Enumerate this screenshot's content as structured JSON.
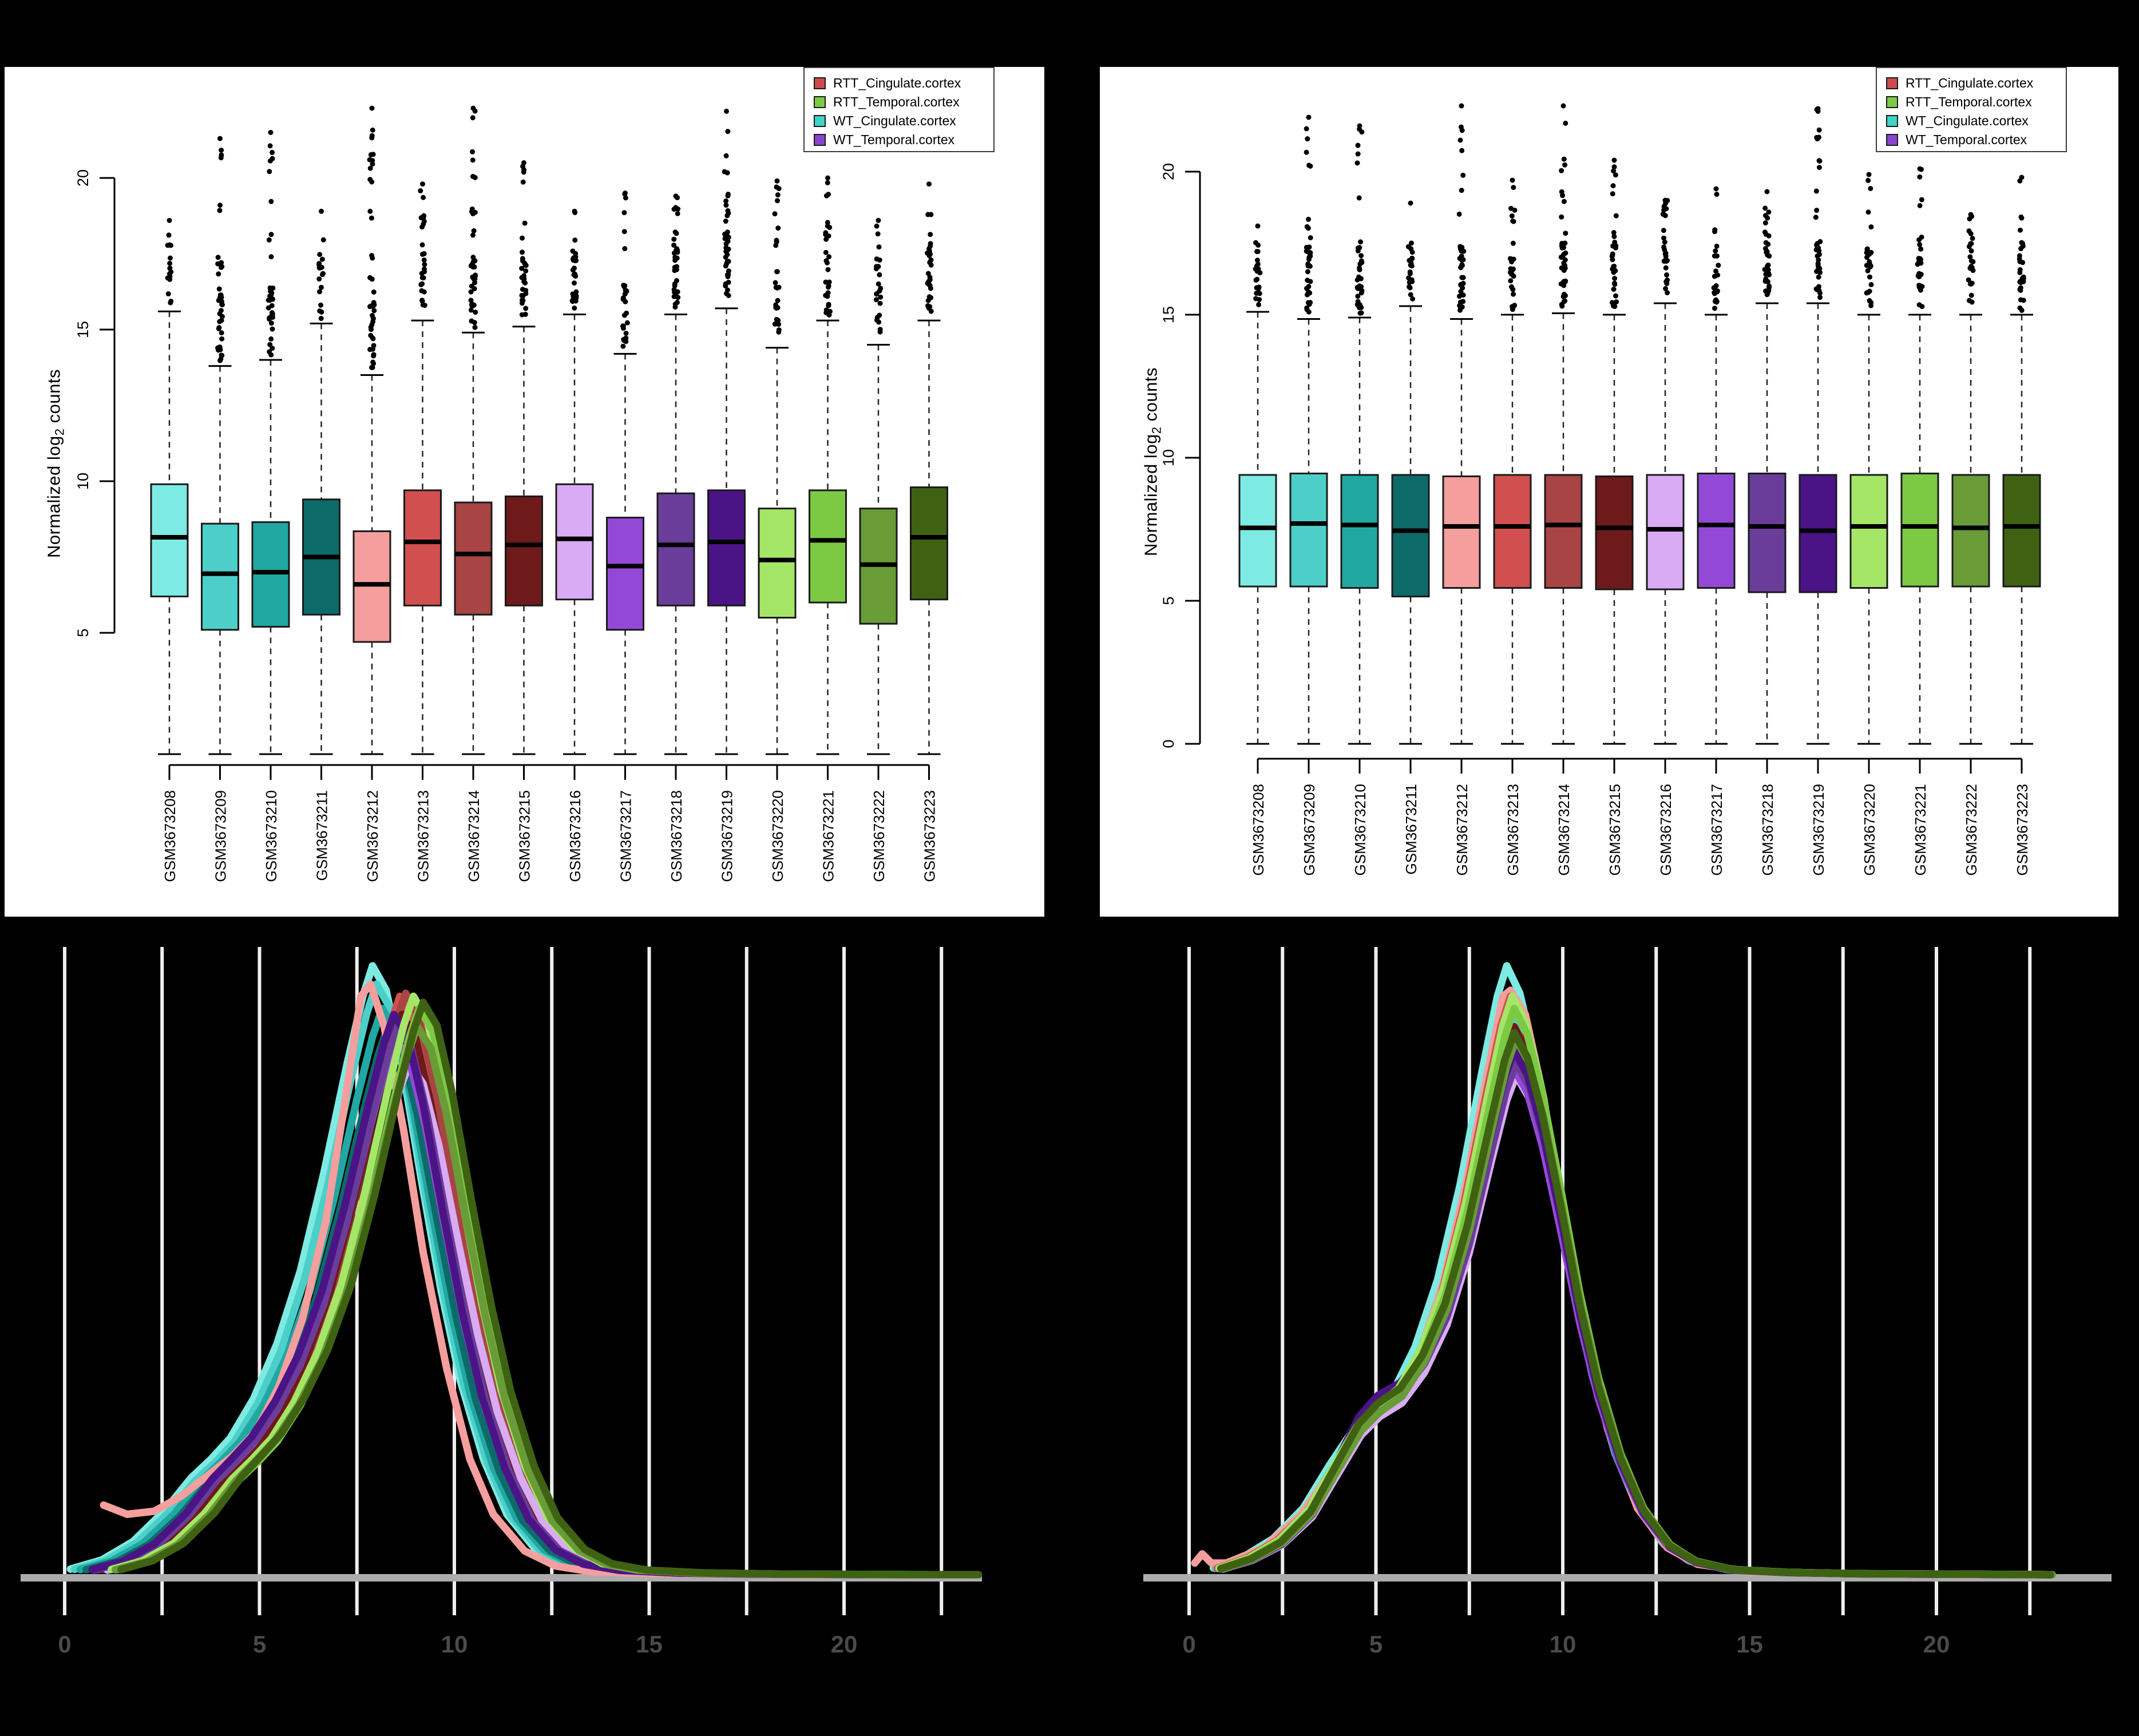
{
  "page": {
    "background": "#000000"
  },
  "chart_data": {
    "type": [
      "boxplot",
      "boxplot",
      "density",
      "density"
    ],
    "y_label": {
      "pre": "Normalized log",
      "sub": "2",
      "post": " counts"
    },
    "legend": {
      "position": "top-right",
      "items": [
        {
          "label": "RTT_Cingulate.cortex",
          "color": "#CD4B4B"
        },
        {
          "label": "RTT_Temporal.cortex",
          "color": "#7CC944"
        },
        {
          "label": "WT_Cingulate.cortex",
          "color": "#3FD2C7"
        },
        {
          "label": "WT_Temporal.cortex",
          "color": "#8B45CC"
        }
      ]
    },
    "samples": [
      {
        "id": "GSM3673208",
        "color": "#7DEBE3",
        "group": "WT_Cingulate.cortex"
      },
      {
        "id": "GSM3673209",
        "color": "#4CCFC8",
        "group": "WT_Cingulate.cortex"
      },
      {
        "id": "GSM3673210",
        "color": "#21A8A2",
        "group": "WT_Cingulate.cortex"
      },
      {
        "id": "GSM3673211",
        "color": "#0C6B68",
        "group": "WT_Cingulate.cortex"
      },
      {
        "id": "GSM3673212",
        "color": "#F59E9E",
        "group": "RTT_Cingulate.cortex"
      },
      {
        "id": "GSM3673213",
        "color": "#D14F4F",
        "group": "RTT_Cingulate.cortex"
      },
      {
        "id": "GSM3673214",
        "color": "#A84444",
        "group": "RTT_Cingulate.cortex"
      },
      {
        "id": "GSM3673215",
        "color": "#6E1A1A",
        "group": "RTT_Cingulate.cortex"
      },
      {
        "id": "GSM3673216",
        "color": "#D9ABF5",
        "group": "WT_Temporal.cortex"
      },
      {
        "id": "GSM3673217",
        "color": "#9449D6",
        "group": "WT_Temporal.cortex"
      },
      {
        "id": "GSM3673218",
        "color": "#6A3D9A",
        "group": "WT_Temporal.cortex"
      },
      {
        "id": "GSM3673219",
        "color": "#4B1486",
        "group": "WT_Temporal.cortex"
      },
      {
        "id": "GSM3673220",
        "color": "#A5E667",
        "group": "RTT_Temporal.cortex"
      },
      {
        "id": "GSM3673221",
        "color": "#7CC944",
        "group": "RTT_Temporal.cortex"
      },
      {
        "id": "GSM3673222",
        "color": "#699B37",
        "group": "RTT_Temporal.cortex"
      },
      {
        "id": "GSM3673223",
        "color": "#3E6212",
        "group": "RTT_Temporal.cortex"
      }
    ],
    "box_left": {
      "y_ticks": [
        5,
        10,
        15,
        20
      ],
      "stats_key": [
        "q1",
        "median",
        "q3",
        "whisker_low",
        "whisker_high",
        "outlier_max",
        "outlier_count"
      ],
      "stats": [
        [
          6.2,
          8.15,
          9.9,
          1.0,
          15.6,
          18.6,
          16
        ],
        [
          5.1,
          6.95,
          8.6,
          1.0,
          13.8,
          21.3,
          38
        ],
        [
          5.2,
          7.0,
          8.65,
          1.0,
          14.0,
          21.5,
          34
        ],
        [
          5.6,
          7.5,
          9.4,
          1.0,
          15.2,
          18.9,
          18
        ],
        [
          4.7,
          6.6,
          8.35,
          1.0,
          13.5,
          22.3,
          42
        ],
        [
          5.9,
          8.0,
          9.7,
          1.0,
          15.3,
          19.8,
          26
        ],
        [
          5.6,
          7.6,
          9.3,
          1.0,
          14.9,
          22.3,
          40
        ],
        [
          5.9,
          7.9,
          9.5,
          1.0,
          15.1,
          20.5,
          30
        ],
        [
          6.1,
          8.1,
          9.9,
          1.0,
          15.5,
          18.9,
          28
        ],
        [
          5.1,
          7.2,
          8.8,
          1.0,
          14.2,
          19.5,
          26
        ],
        [
          5.9,
          7.9,
          9.6,
          1.0,
          15.5,
          19.4,
          34
        ],
        [
          5.9,
          8.0,
          9.7,
          1.0,
          15.7,
          22.2,
          40
        ],
        [
          5.5,
          7.4,
          9.1,
          1.0,
          14.4,
          19.9,
          26
        ],
        [
          6.0,
          8.05,
          9.7,
          1.0,
          15.3,
          20.0,
          30
        ],
        [
          5.3,
          7.25,
          9.1,
          1.0,
          14.5,
          18.6,
          24
        ],
        [
          6.1,
          8.15,
          9.8,
          1.0,
          15.3,
          19.8,
          28
        ]
      ]
    },
    "box_right": {
      "y_ticks": [
        0,
        5,
        10,
        15,
        20
      ],
      "stats_key": [
        "q1",
        "median",
        "q3",
        "whisker_low",
        "whisker_high",
        "outlier_max",
        "outlier_count"
      ],
      "stats": [
        [
          5.5,
          7.55,
          9.4,
          0,
          15.1,
          18.1,
          22
        ],
        [
          5.5,
          7.7,
          9.45,
          0,
          14.85,
          21.9,
          36
        ],
        [
          5.45,
          7.65,
          9.4,
          0,
          14.9,
          21.6,
          34
        ],
        [
          5.15,
          7.45,
          9.4,
          0,
          15.3,
          18.9,
          20
        ],
        [
          5.45,
          7.6,
          9.35,
          0,
          14.85,
          22.3,
          40
        ],
        [
          5.45,
          7.6,
          9.4,
          0,
          15.0,
          19.7,
          26
        ],
        [
          5.45,
          7.65,
          9.4,
          0,
          15.05,
          22.3,
          38
        ],
        [
          5.4,
          7.55,
          9.35,
          0,
          15.0,
          20.4,
          30
        ],
        [
          5.4,
          7.5,
          9.4,
          0,
          15.4,
          19.0,
          26
        ],
        [
          5.45,
          7.65,
          9.45,
          0,
          15.0,
          19.4,
          24
        ],
        [
          5.3,
          7.6,
          9.45,
          0,
          15.4,
          19.3,
          32
        ],
        [
          5.3,
          7.45,
          9.4,
          0,
          15.4,
          22.2,
          38
        ],
        [
          5.45,
          7.6,
          9.4,
          0,
          15.0,
          19.9,
          26
        ],
        [
          5.5,
          7.6,
          9.45,
          0,
          15.0,
          20.1,
          30
        ],
        [
          5.5,
          7.55,
          9.4,
          0,
          15.0,
          18.5,
          24
        ],
        [
          5.5,
          7.6,
          9.4,
          0,
          15.0,
          19.8,
          28
        ]
      ]
    },
    "density_left": {
      "x_ticks": [
        0,
        5,
        10,
        15,
        20
      ],
      "gridline_values": [
        0,
        2.5,
        5,
        7.5,
        10,
        12.5,
        15,
        17.5,
        20,
        22.5
      ],
      "base_curve": [
        [
          1,
          0.01
        ],
        [
          1.8,
          0.025
        ],
        [
          2.6,
          0.055
        ],
        [
          3.4,
          0.105
        ],
        [
          4.1,
          0.16
        ],
        [
          4.6,
          0.19
        ],
        [
          5.1,
          0.225
        ],
        [
          5.7,
          0.29
        ],
        [
          6.3,
          0.38
        ],
        [
          6.9,
          0.5
        ],
        [
          7.5,
          0.66
        ],
        [
          8.1,
          0.84
        ],
        [
          8.5,
          0.95
        ],
        [
          8.75,
          1.0
        ],
        [
          9.1,
          0.96
        ],
        [
          9.5,
          0.84
        ],
        [
          10,
          0.65
        ],
        [
          10.5,
          0.47
        ],
        [
          11,
          0.32
        ],
        [
          11.6,
          0.19
        ],
        [
          12.2,
          0.1
        ],
        [
          12.9,
          0.045
        ],
        [
          13.6,
          0.02
        ],
        [
          14.5,
          0.009
        ],
        [
          16,
          0.004
        ],
        [
          18,
          0.002
        ],
        [
          20,
          0.0015
        ],
        [
          21.5,
          0.001
        ],
        [
          23,
          0.001
        ]
      ],
      "curves": [
        {
          "sample": 0,
          "dx": -0.85,
          "sy": 1.0,
          "shoulder": 1.0
        },
        {
          "sample": 1,
          "dx": -0.75,
          "sy": 0.97,
          "shoulder": 1.0
        },
        {
          "sample": 2,
          "dx": -0.6,
          "sy": 0.93,
          "shoulder": 1.05
        },
        {
          "sample": 3,
          "dx": -0.45,
          "sy": 0.9,
          "shoulder": 1.05
        },
        {
          "sample": 4,
          "dx": 0,
          "sy": 1,
          "shoulder": 1,
          "points": [
            [
              1,
              0.115
            ],
            [
              1.6,
              0.1
            ],
            [
              2.3,
              0.105
            ],
            [
              3,
              0.13
            ],
            [
              3.7,
              0.165
            ],
            [
              4.3,
              0.195
            ],
            [
              4.9,
              0.235
            ],
            [
              5.5,
              0.31
            ],
            [
              6.1,
              0.42
            ],
            [
              6.7,
              0.58
            ],
            [
              7.2,
              0.78
            ],
            [
              7.6,
              0.95
            ],
            [
              7.85,
              0.97
            ],
            [
              8.2,
              0.9
            ],
            [
              8.7,
              0.73
            ],
            [
              9.2,
              0.53
            ],
            [
              9.8,
              0.34
            ],
            [
              10.4,
              0.19
            ],
            [
              11,
              0.1
            ],
            [
              11.8,
              0.04
            ],
            [
              12.6,
              0.015
            ],
            [
              13.5,
              0.006
            ],
            [
              15,
              0.003
            ],
            [
              17,
              0.002
            ],
            [
              19,
              0.001
            ],
            [
              21,
              0.001
            ],
            [
              22.5,
              0.0008
            ]
          ]
        },
        {
          "sample": 5,
          "dx": -0.15,
          "sy": 0.95,
          "shoulder": 1.0
        },
        {
          "sample": 6,
          "dx": 0.0,
          "sy": 0.955,
          "shoulder": 1.0
        },
        {
          "sample": 7,
          "dx": -0.1,
          "sy": 0.92,
          "shoulder": 1.05
        },
        {
          "sample": 8,
          "dx": 0.1,
          "sy": 0.84,
          "shoulder": 1.1
        },
        {
          "sample": 9,
          "dx": -0.25,
          "sy": 0.88,
          "shoulder": 1.1
        },
        {
          "sample": 10,
          "dx": -0.2,
          "sy": 0.9,
          "shoulder": 1.1
        },
        {
          "sample": 11,
          "dx": -0.3,
          "sy": 0.92,
          "shoulder": 1.1
        },
        {
          "sample": 12,
          "dx": 0.2,
          "sy": 0.95,
          "shoulder": 1.05
        },
        {
          "sample": 13,
          "dx": 0.35,
          "sy": 0.93,
          "shoulder": 1.05
        },
        {
          "sample": 14,
          "dx": 0.3,
          "sy": 0.9,
          "shoulder": 1.1
        },
        {
          "sample": 15,
          "dx": 0.45,
          "sy": 0.94,
          "shoulder": 1.1
        }
      ]
    },
    "density_right": {
      "x_ticks": [
        0,
        5,
        10,
        15,
        20
      ],
      "gridline_values": [
        0,
        2.5,
        5,
        7.5,
        10,
        12.5,
        15,
        17.5,
        20,
        22.5
      ],
      "base_curve": [
        [
          0.8,
          0.012
        ],
        [
          1.6,
          0.03
        ],
        [
          2.4,
          0.06
        ],
        [
          3.2,
          0.11
        ],
        [
          3.9,
          0.18
        ],
        [
          4.5,
          0.235
        ],
        [
          5,
          0.265
        ],
        [
          5.6,
          0.3
        ],
        [
          6.2,
          0.375
        ],
        [
          6.8,
          0.485
        ],
        [
          7.4,
          0.64
        ],
        [
          8,
          0.83
        ],
        [
          8.4,
          0.95
        ],
        [
          8.65,
          1.0
        ],
        [
          9,
          0.955
        ],
        [
          9.4,
          0.85
        ],
        [
          9.9,
          0.68
        ],
        [
          10.4,
          0.5
        ],
        [
          10.9,
          0.35
        ],
        [
          11.5,
          0.215
        ],
        [
          12.1,
          0.12
        ],
        [
          12.8,
          0.055
        ],
        [
          13.5,
          0.025
        ],
        [
          14.5,
          0.01
        ],
        [
          16,
          0.005
        ],
        [
          18,
          0.0025
        ],
        [
          20,
          0.002
        ],
        [
          21.5,
          0.0015
        ],
        [
          23,
          0.001
        ]
      ],
      "curves": [
        {
          "sample": 0,
          "dx": -0.15,
          "sy": 1.0,
          "shoulder": 1.0
        },
        {
          "sample": 1,
          "dx": -0.1,
          "sy": 0.93,
          "shoulder": 1.05
        },
        {
          "sample": 2,
          "dx": -0.05,
          "sy": 0.9,
          "shoulder": 1.1
        },
        {
          "sample": 3,
          "dx": 0.0,
          "sy": 0.88,
          "shoulder": 1.15
        },
        {
          "sample": 4,
          "dx": 0,
          "sy": 1,
          "shoulder": 1,
          "points": [
            [
              0.15,
              0.02
            ],
            [
              0.35,
              0.035
            ],
            [
              0.6,
              0.02
            ],
            [
              1,
              0.02
            ],
            [
              2,
              0.045
            ],
            [
              3,
              0.1
            ],
            [
              3.8,
              0.17
            ],
            [
              4.5,
              0.23
            ],
            [
              5,
              0.26
            ],
            [
              5.6,
              0.3
            ],
            [
              6.2,
              0.37
            ],
            [
              6.8,
              0.48
            ],
            [
              7.4,
              0.64
            ],
            [
              8,
              0.83
            ],
            [
              8.4,
              0.95
            ],
            [
              8.6,
              0.96
            ],
            [
              9,
              0.92
            ],
            [
              9.5,
              0.78
            ],
            [
              10,
              0.58
            ],
            [
              10.6,
              0.39
            ],
            [
              11.2,
              0.24
            ],
            [
              12,
              0.11
            ],
            [
              12.8,
              0.045
            ],
            [
              13.6,
              0.018
            ],
            [
              15,
              0.006
            ],
            [
              17,
              0.003
            ],
            [
              19,
              0.002
            ],
            [
              21,
              0.001
            ],
            [
              22.3,
              0.001
            ]
          ]
        },
        {
          "sample": 5,
          "dx": -0.05,
          "sy": 0.95,
          "shoulder": 1.0
        },
        {
          "sample": 6,
          "dx": 0.0,
          "sy": 0.94,
          "shoulder": 1.05
        },
        {
          "sample": 7,
          "dx": 0.05,
          "sy": 0.9,
          "shoulder": 1.1
        },
        {
          "sample": 8,
          "dx": 0.1,
          "sy": 0.82,
          "shoulder": 1.2
        },
        {
          "sample": 9,
          "dx": 0.05,
          "sy": 0.83,
          "shoulder": 1.25
        },
        {
          "sample": 10,
          "dx": 0.1,
          "sy": 0.84,
          "shoulder": 1.25
        },
        {
          "sample": 11,
          "dx": 0.05,
          "sy": 0.86,
          "shoulder": 1.3
        },
        {
          "sample": 12,
          "dx": 0.0,
          "sy": 0.95,
          "shoulder": 1.1
        },
        {
          "sample": 13,
          "dx": 0.05,
          "sy": 0.93,
          "shoulder": 1.1
        },
        {
          "sample": 14,
          "dx": 0.1,
          "sy": 0.88,
          "shoulder": 1.15
        },
        {
          "sample": 15,
          "dx": 0.05,
          "sy": 0.89,
          "shoulder": 1.2
        }
      ]
    }
  }
}
